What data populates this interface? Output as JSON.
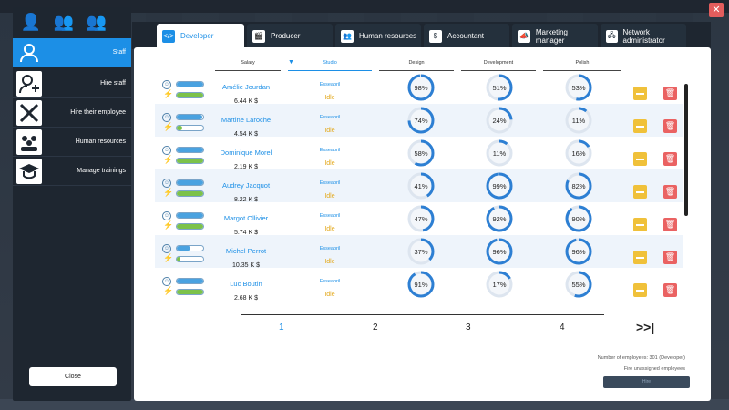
{
  "sidebar": {
    "items": [
      {
        "label": "Staff",
        "icon": "person-icon",
        "active": true
      },
      {
        "label": "Hire staff",
        "icon": "add-person-icon",
        "active": false
      },
      {
        "label": "Hire their employee",
        "icon": "crossed-swords-icon",
        "active": false
      },
      {
        "label": "Human resources",
        "icon": "group-icon",
        "active": false
      },
      {
        "label": "Manage trainings",
        "icon": "graduation-cap-icon",
        "active": false
      }
    ],
    "close_label": "Close"
  },
  "tabs": [
    {
      "label": "Developer",
      "active": true
    },
    {
      "label": "Producer"
    },
    {
      "label": "Human resources"
    },
    {
      "label": "Accountant"
    },
    {
      "label": "Marketing manager"
    },
    {
      "label": "Network administrator"
    }
  ],
  "table": {
    "headers": {
      "salary": "Salary",
      "studio": "Studio",
      "design": "Design",
      "development": "Development",
      "polish": "Polish"
    },
    "rows": [
      {
        "name": "Amélie Jourdan",
        "salary": "6.44 K $",
        "studio": "Esseapril",
        "status": "Idle",
        "mood": 1.0,
        "energy": 1.0,
        "design": 98,
        "development": 51,
        "polish": 53
      },
      {
        "name": "Martine Laroche",
        "salary": "4.54 K $",
        "studio": "Esseapril",
        "status": "Idle",
        "mood": 0.95,
        "energy": 0.2,
        "design": 74,
        "development": 24,
        "polish": 11
      },
      {
        "name": "Dominique Morel",
        "salary": "2.19 K $",
        "studio": "Esseapril",
        "status": "Idle",
        "mood": 1.0,
        "energy": 1.0,
        "design": 58,
        "development": 11,
        "polish": 16
      },
      {
        "name": "Audrey Jacquot",
        "salary": "8.22 K $",
        "studio": "Esseapril",
        "status": "Idle",
        "mood": 1.0,
        "energy": 1.0,
        "design": 41,
        "development": 99,
        "polish": 82
      },
      {
        "name": "Margot Ollivier",
        "salary": "5.74 K $",
        "studio": "Esseapril",
        "status": "Idle",
        "mood": 1.0,
        "energy": 1.0,
        "design": 47,
        "development": 92,
        "polish": 90
      },
      {
        "name": "Michel Perrot",
        "salary": "10.35 K $",
        "studio": "Esseapril",
        "status": "Idle",
        "mood": 0.5,
        "energy": 0.15,
        "design": 37,
        "development": 96,
        "polish": 96
      },
      {
        "name": "Luc Boutin",
        "salary": "2.68 K $",
        "studio": "Esseapril",
        "status": "Idle",
        "mood": 1.0,
        "energy": 1.0,
        "design": 91,
        "development": 17,
        "polish": 55
      }
    ]
  },
  "pagination": {
    "pages": [
      "1",
      "2",
      "3",
      "4"
    ],
    "current": "1",
    "last_label": "last-page-icon"
  },
  "footer": {
    "employee_count": "Number of employees: 301 (Developer)",
    "fire_unassigned": "Fire unassigned employees",
    "hire_button": "Hire"
  },
  "colors": {
    "accent": "#1c8fe6",
    "gauge_ring": "#2d7fd3",
    "idle": "#e3a81a",
    "fire": "#ea6262",
    "demote": "#f0c13a"
  }
}
